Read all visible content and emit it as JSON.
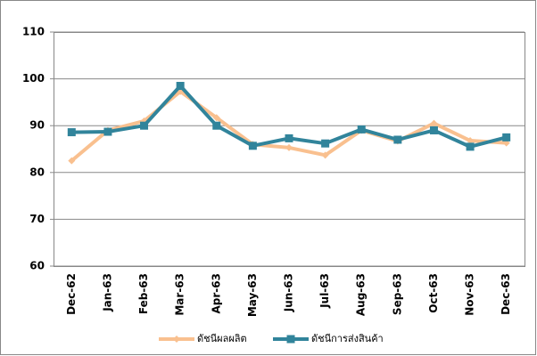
{
  "chart_data": {
    "type": "line",
    "categories": [
      "Dec-62",
      "Jan-63",
      "Feb-63",
      "Mar-63",
      "Apr-63",
      "May-63",
      "Jun-63",
      "Jul-63",
      "Aug-63",
      "Sep-63",
      "Oct-63",
      "Nov-63",
      "Dec-63"
    ],
    "series": [
      {
        "name": "ดัชนีผลผลิต",
        "color": "#f9c08f",
        "values": [
          82.5,
          89.0,
          91.0,
          97.3,
          91.7,
          86.0,
          85.3,
          83.7,
          89.0,
          86.7,
          90.5,
          86.8,
          86.3
        ]
      },
      {
        "name": "ดัชนีการส่งสินค้า",
        "color": "#31849b",
        "values": [
          88.6,
          88.7,
          90.0,
          98.5,
          90.0,
          85.7,
          87.3,
          86.2,
          89.2,
          87.0,
          89.0,
          85.5,
          87.5
        ]
      }
    ],
    "ylim": [
      60,
      110
    ],
    "yticks": [
      60,
      70,
      80,
      90,
      100,
      110
    ],
    "grid": true,
    "legend": "bottom"
  }
}
